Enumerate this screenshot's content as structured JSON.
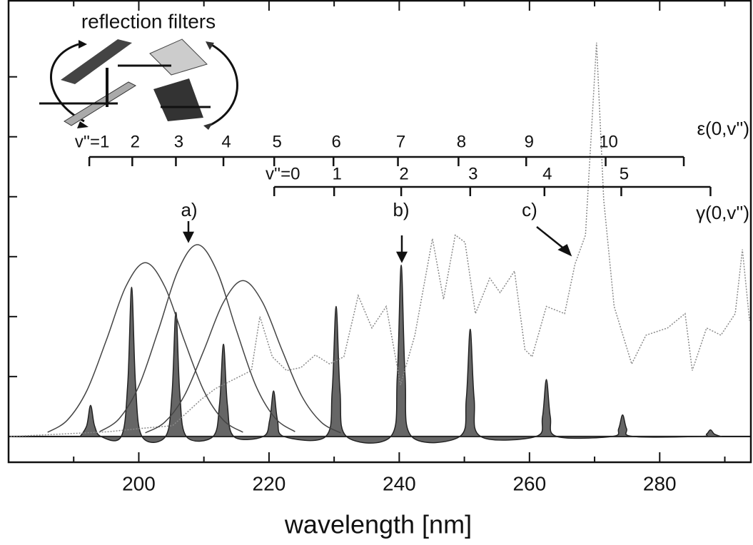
{
  "chart_data": {
    "type": "line",
    "xlabel": "wavelength [nm]",
    "xlim": [
      180,
      294
    ],
    "xticks": [
      200,
      220,
      240,
      260,
      280
    ],
    "xminorticks": [
      190,
      210,
      230,
      250,
      270,
      290
    ],
    "ylim": [
      -0.43,
      7.27
    ],
    "yticks": [
      1,
      2,
      3,
      4,
      5,
      6
    ],
    "series": [
      {
        "style": "filled",
        "color": "#666666",
        "x": [
          191.0,
          192.0,
          192.6,
          193.2,
          194.2,
          197.3,
          198.3,
          198.9,
          199.5,
          200.5,
          204.1,
          205.1,
          205.7,
          206.3,
          207.3,
          211.4,
          212.4,
          213.0,
          213.6,
          214.6,
          219.1,
          220.1,
          220.7,
          221.3,
          222.3,
          228.7,
          229.7,
          230.3,
          230.9,
          231.9,
          238.7,
          239.7,
          240.3,
          240.9,
          241.9,
          249.3,
          250.3,
          250.9,
          251.5,
          252.5,
          261.0,
          262.0,
          262.6,
          263.2,
          264.2,
          272.7,
          273.7,
          274.3,
          274.9,
          275.9,
          286.2,
          287.2,
          287.8,
          288.4,
          289.4
        ],
        "values": [
          0,
          0.18,
          0.52,
          0.18,
          0,
          0,
          0.87,
          2.49,
          0.87,
          0,
          0,
          0.72,
          2.07,
          0.72,
          0,
          0,
          0.54,
          1.54,
          0.54,
          0,
          0,
          0.27,
          0.76,
          0.27,
          0,
          0,
          0.76,
          2.17,
          0.76,
          0,
          0,
          1.0,
          2.86,
          1.0,
          0,
          0,
          0.63,
          1.79,
          0.63,
          0,
          0,
          0.33,
          0.95,
          0.33,
          0,
          0,
          0.13,
          0.36,
          0.13,
          0,
          0,
          0.04,
          0.11,
          0.04,
          0
        ]
      },
      {
        "style": "dotted",
        "color": "#8a8a8a",
        "x": [
          180.3,
          189.9,
          195.4,
          200.9,
          205.2,
          209.6,
          211.8,
          215.1,
          217.3,
          218.6,
          220.5,
          222.7,
          224.9,
          227.1,
          229.3,
          231.5,
          233.7,
          235.8,
          238.0,
          240.2,
          242.4,
          245.1,
          246.8,
          248.6,
          250.1,
          251.7,
          253.9,
          255.5,
          257.7,
          259.3,
          260.4,
          262.6,
          265.4,
          267.0,
          268.6,
          270.3,
          271.4,
          273.0,
          275.7,
          277.9,
          281.2,
          283.9,
          285.0,
          287.2,
          289.4,
          291.6,
          292.7,
          293.8
        ],
        "values": [
          0,
          0.05,
          0.08,
          0.14,
          0.18,
          0.62,
          0.8,
          0.98,
          1.1,
          2.0,
          1.33,
          1.1,
          1.15,
          1.36,
          1.21,
          1.33,
          2.35,
          1.81,
          2.17,
          0.86,
          1.69,
          3.3,
          2.29,
          3.36,
          3.24,
          2.05,
          2.64,
          2.4,
          2.76,
          1.45,
          1.33,
          2.17,
          2.05,
          2.88,
          3.36,
          6.57,
          3.95,
          2.17,
          1.21,
          1.69,
          1.81,
          2.05,
          1.1,
          1.81,
          1.69,
          2.05,
          3.12,
          1.93
        ]
      },
      {
        "style": "line",
        "color": "#444444",
        "x": [
          186,
          189,
          192,
          195,
          198,
          201,
          204,
          207,
          210,
          213,
          216
        ],
        "values": [
          0.07,
          0.27,
          0.76,
          1.6,
          2.5,
          2.9,
          2.5,
          1.6,
          0.76,
          0.27,
          0.07
        ]
      },
      {
        "style": "line",
        "color": "#444444",
        "x": [
          194,
          197,
          200,
          203,
          206,
          209,
          212,
          215,
          218,
          221,
          224
        ],
        "values": [
          0.08,
          0.3,
          0.84,
          1.77,
          2.76,
          3.2,
          2.76,
          1.77,
          0.84,
          0.3,
          0.08
        ]
      },
      {
        "style": "line",
        "color": "#444444",
        "x": [
          201,
          204,
          207,
          210,
          213,
          216,
          219,
          222,
          225,
          228,
          231
        ],
        "values": [
          0.06,
          0.24,
          0.68,
          1.44,
          2.24,
          2.6,
          2.24,
          1.44,
          0.68,
          0.24,
          0.06
        ]
      }
    ],
    "progressions": [
      {
        "name": "ε(0,v'')",
        "labels": [
          "v''=1",
          "2",
          "3",
          "4",
          "5",
          "6",
          "7",
          "8",
          "9",
          "10"
        ],
        "x": [
          192.4,
          199.0,
          205.7,
          213.0,
          220.8,
          229.9,
          239.8,
          249.1,
          259.5,
          271.7
        ],
        "end": 283.7
      },
      {
        "name": "γ(0,v'')",
        "labels": [
          "v''=0",
          "1",
          "2",
          "3",
          "4",
          "5"
        ],
        "x": [
          220.8,
          230.0,
          240.3,
          250.9,
          262.3,
          274.1
        ],
        "end": 287.8
      }
    ],
    "annotations": [
      "a)",
      "b)",
      "c)"
    ],
    "inset_label": "reflection filters"
  }
}
